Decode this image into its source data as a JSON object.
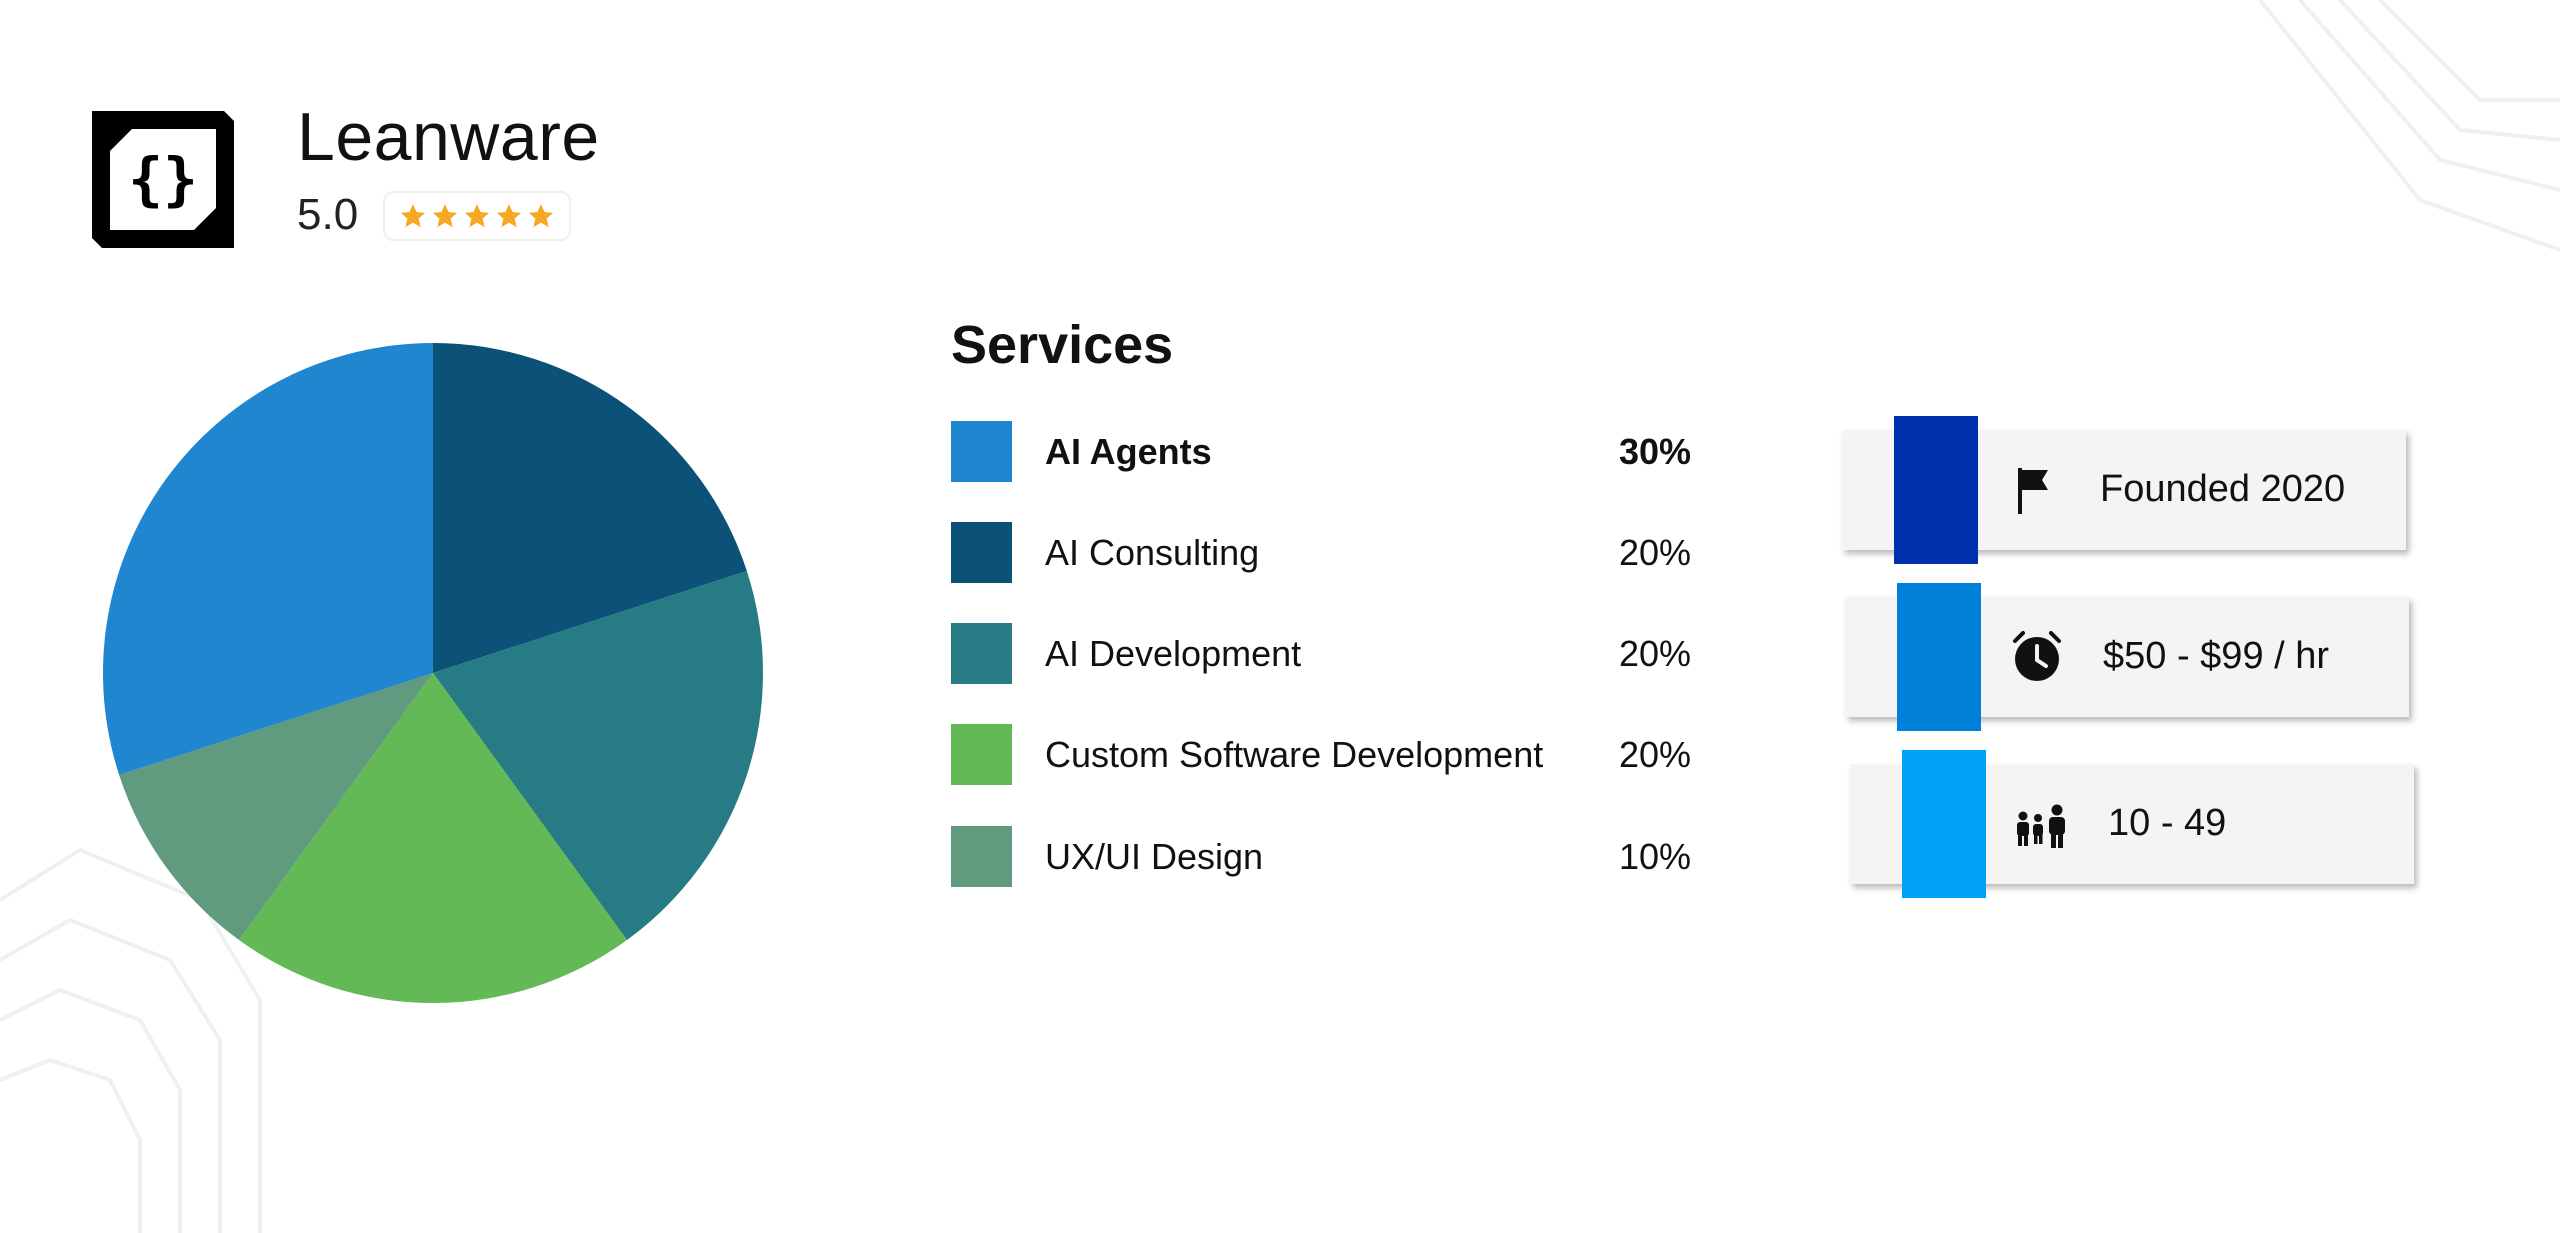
{
  "header": {
    "company_name": "Leanware",
    "rating": "5.0",
    "star_count": 5,
    "star_color": "#f7a823"
  },
  "services": {
    "title": "Services",
    "items": [
      {
        "label": "AI Agents",
        "percent": "30%",
        "color": "#1f86cf",
        "emphasized": true
      },
      {
        "label": "AI Consulting",
        "percent": "20%",
        "color": "#0b5178",
        "emphasized": false
      },
      {
        "label": "AI Development",
        "percent": "20%",
        "color": "#267b85",
        "emphasized": false
      },
      {
        "label": "Custom Software Development",
        "percent": "20%",
        "color": "#62b955",
        "emphasized": false
      },
      {
        "label": "UX/UI Design",
        "percent": "10%",
        "color": "#609b80",
        "emphasized": false
      }
    ]
  },
  "chart_data": {
    "type": "pie",
    "categories": [
      "AI Consulting",
      "AI Development",
      "Custom Software Development",
      "UX/UI Design",
      "AI Agents"
    ],
    "values": [
      20,
      20,
      20,
      10,
      30
    ],
    "colors": [
      "#0b5178",
      "#267b85",
      "#62b955",
      "#609b80",
      "#1f86cf"
    ],
    "start_angle_deg": -90,
    "direction": "clockwise",
    "legend_placement": "right"
  },
  "info_cards": [
    {
      "icon": "flag-icon",
      "text": "Founded 2020",
      "accent": "#0031ad"
    },
    {
      "icon": "alarm-clock-icon",
      "text": "$50 - $99 / hr",
      "accent": "#0080d8"
    },
    {
      "icon": "people-icon",
      "text": "10 - 49",
      "accent": "#00a2f6"
    }
  ]
}
